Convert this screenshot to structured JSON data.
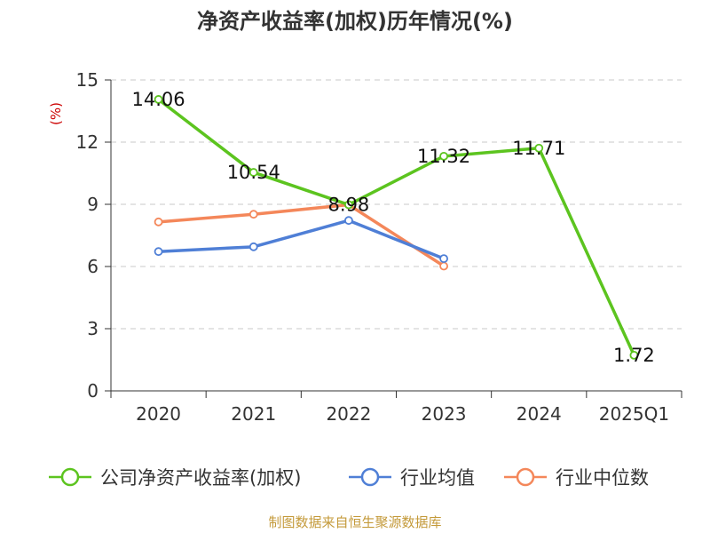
{
  "chart_data": {
    "type": "line",
    "title": "净资产收益率(加权)历年情况(%)",
    "ylabel": "(%)",
    "xlabel": "",
    "categories": [
      "2020",
      "2021",
      "2022",
      "2023",
      "2024",
      "2025Q1"
    ],
    "ylim": [
      0,
      15
    ],
    "yticks": [
      0,
      3,
      6,
      9,
      12,
      15
    ],
    "grid": true,
    "legend_position": "bottom",
    "series": [
      {
        "name": "公司净资产收益率(加权)",
        "color": "#5cc41f",
        "values": [
          14.06,
          10.54,
          8.98,
          11.32,
          11.71,
          1.72
        ],
        "labels": [
          "14.06",
          "10.54",
          "8.98",
          "11.32",
          "11.71",
          "1.72"
        ]
      },
      {
        "name": "行业均值",
        "color": "#4f7fd6",
        "values": [
          6.72,
          6.95,
          8.22,
          6.38,
          null,
          null
        ]
      },
      {
        "name": "行业中位数",
        "color": "#f4875a",
        "values": [
          8.15,
          8.52,
          8.98,
          6.02,
          null,
          null
        ]
      }
    ]
  },
  "source": "制图数据来自恒生聚源数据库"
}
